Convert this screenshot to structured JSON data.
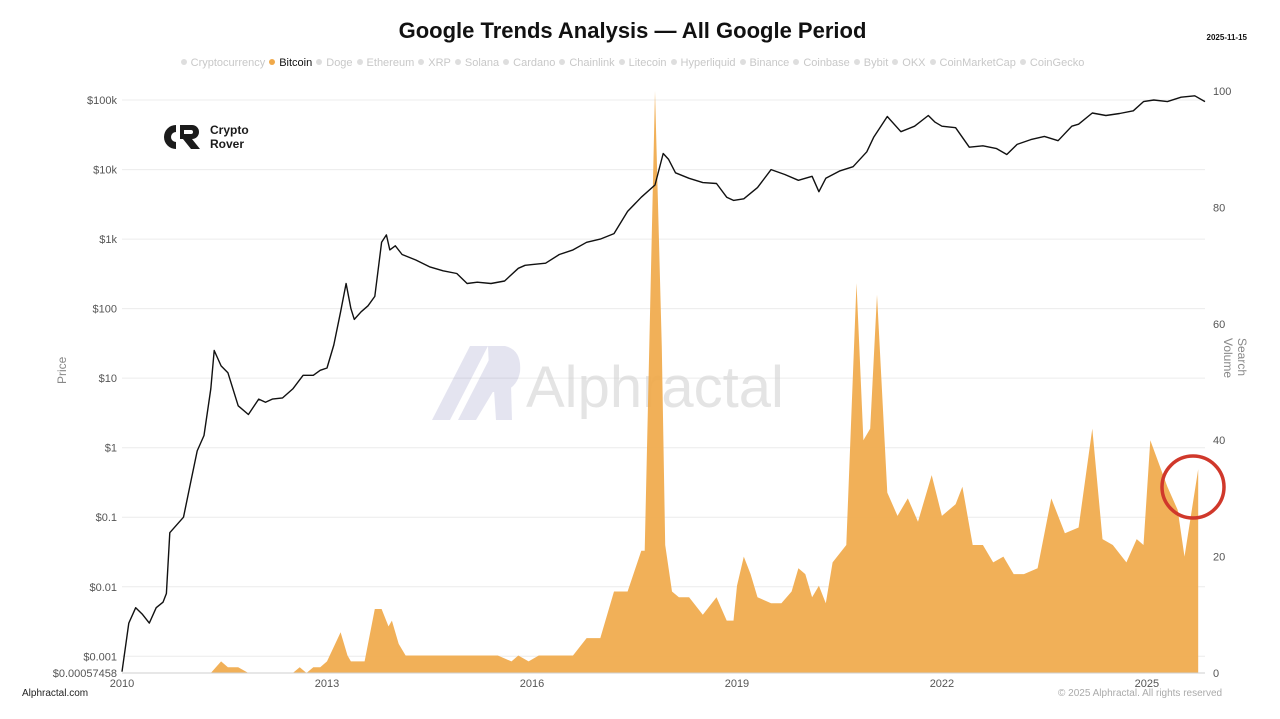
{
  "header": {
    "title": "Google Trends Analysis — All Google Period",
    "date": "2025-11-15"
  },
  "legend": {
    "items": [
      "Cryptocurrency",
      "Bitcoin",
      "Doge",
      "Ethereum",
      "XRP",
      "Solana",
      "Cardano",
      "Chainlink",
      "Litecoin",
      "Hyperliquid",
      "Binance",
      "Coinbase",
      "Bybit",
      "OKX",
      "CoinMarketCap",
      "CoinGecko"
    ],
    "active": "Bitcoin"
  },
  "brand": {
    "line1": "Crypto",
    "line2": "Rover"
  },
  "watermark": "Alphractal",
  "footer": {
    "left": "Alphractal.com",
    "right": "© 2025 Alphractal. All rights reserved"
  },
  "colors": {
    "bitcoin_area": "#f0a94a",
    "price_line": "#111111",
    "highlight_circle": "#d0382b",
    "gridline": "#ececec"
  },
  "chart_data": {
    "type": "line",
    "title": "Google Trends Analysis — All Google Period",
    "xlabel": "",
    "ylabel": "Price",
    "y2label": "Search Volume",
    "x_ticks": [
      "2010",
      "2013",
      "2016",
      "2019",
      "2022",
      "2025"
    ],
    "y_ticks_left": [
      "$0.00057458",
      "$0.001",
      "$0.01",
      "$0.1",
      "$1",
      "$10",
      "$100",
      "$1k",
      "$10k",
      "$100k"
    ],
    "y_ticks_right": [
      "0",
      "20",
      "40",
      "60",
      "80",
      "100"
    ],
    "xlim": [
      2010.0,
      2025.85
    ],
    "ylim_left_log10": [
      -3.24,
      5.13
    ],
    "ylim_right": [
      0,
      100
    ],
    "y_scale_left": "log",
    "grid": true,
    "legend_position": "top",
    "annotation": "circle around late-2025 search volume peak",
    "series": [
      {
        "name": "Bitcoin",
        "axis": "right",
        "type": "area",
        "x": [
          2010.0,
          2011.3,
          2011.45,
          2011.55,
          2011.7,
          2011.85,
          2012.0,
          2012.5,
          2012.6,
          2012.7,
          2012.8,
          2012.9,
          2013.0,
          2013.2,
          2013.3,
          2013.35,
          2013.45,
          2013.55,
          2013.7,
          2013.8,
          2013.9,
          2013.95,
          2014.05,
          2014.15,
          2014.25,
          2014.35,
          2014.5,
          2014.8,
          2015.0,
          2015.2,
          2015.5,
          2015.7,
          2015.8,
          2015.95,
          2016.1,
          2016.2,
          2016.3,
          2016.45,
          2016.6,
          2016.8,
          2017.0,
          2017.2,
          2017.4,
          2017.6,
          2017.65,
          2017.8,
          2017.9,
          2017.95,
          2018.0,
          2018.05,
          2018.15,
          2018.3,
          2018.5,
          2018.7,
          2018.85,
          2018.95,
          2019.0,
          2019.1,
          2019.2,
          2019.3,
          2019.5,
          2019.65,
          2019.8,
          2019.9,
          2020.0,
          2020.1,
          2020.2,
          2020.3,
          2020.4,
          2020.6,
          2020.75,
          2020.85,
          2020.95,
          2021.05,
          2021.2,
          2021.35,
          2021.5,
          2021.65,
          2021.85,
          2022.0,
          2022.2,
          2022.3,
          2022.45,
          2022.6,
          2022.75,
          2022.9,
          2023.05,
          2023.2,
          2023.4,
          2023.6,
          2023.8,
          2024.0,
          2024.2,
          2024.35,
          2024.5,
          2024.7,
          2024.85,
          2024.95,
          2025.05,
          2025.3,
          2025.45,
          2025.55,
          2025.75
        ],
        "values": [
          0,
          0,
          2,
          1,
          1,
          0,
          0,
          0,
          1,
          0,
          1,
          1,
          2,
          7,
          3,
          2,
          2,
          2,
          11,
          11,
          8,
          9,
          5,
          3,
          3,
          3,
          3,
          3,
          3,
          3,
          3,
          2,
          3,
          2,
          3,
          3,
          3,
          3,
          3,
          6,
          6,
          14,
          14,
          21,
          21,
          100,
          56,
          22,
          18,
          14,
          13,
          13,
          10,
          13,
          9,
          9,
          15,
          20,
          17,
          13,
          12,
          12,
          14,
          18,
          17,
          13,
          15,
          12,
          19,
          22,
          67,
          40,
          42,
          65,
          31,
          27,
          30,
          26,
          34,
          27,
          29,
          32,
          22,
          22,
          19,
          20,
          17,
          17,
          18,
          30,
          24,
          25,
          42,
          23,
          22,
          19,
          23,
          22,
          40,
          32,
          28,
          20,
          35
        ]
      },
      {
        "name": "Price",
        "axis": "left",
        "type": "line",
        "x": [
          2010.0,
          2010.1,
          2010.2,
          2010.3,
          2010.4,
          2010.5,
          2010.6,
          2010.65,
          2010.7,
          2010.9,
          2011.0,
          2011.1,
          2011.2,
          2011.3,
          2011.35,
          2011.45,
          2011.55,
          2011.7,
          2011.85,
          2012.0,
          2012.1,
          2012.2,
          2012.35,
          2012.5,
          2012.65,
          2012.8,
          2012.9,
          2013.0,
          2013.1,
          2013.2,
          2013.28,
          2013.35,
          2013.4,
          2013.5,
          2013.6,
          2013.7,
          2013.8,
          2013.87,
          2013.92,
          2014.0,
          2014.1,
          2014.3,
          2014.5,
          2014.7,
          2014.9,
          2015.05,
          2015.2,
          2015.4,
          2015.6,
          2015.8,
          2015.9,
          2016.0,
          2016.2,
          2016.4,
          2016.6,
          2016.8,
          2017.0,
          2017.2,
          2017.4,
          2017.6,
          2017.8,
          2017.92,
          2018.0,
          2018.1,
          2018.3,
          2018.5,
          2018.7,
          2018.85,
          2018.95,
          2019.1,
          2019.3,
          2019.5,
          2019.7,
          2019.9,
          2020.1,
          2020.2,
          2020.3,
          2020.5,
          2020.7,
          2020.9,
          2021.0,
          2021.2,
          2021.4,
          2021.6,
          2021.8,
          2021.9,
          2022.0,
          2022.2,
          2022.4,
          2022.6,
          2022.8,
          2022.95,
          2023.1,
          2023.3,
          2023.5,
          2023.7,
          2023.9,
          2024.0,
          2024.2,
          2024.4,
          2024.6,
          2024.8,
          2024.95,
          2025.1,
          2025.3,
          2025.5,
          2025.7,
          2025.85
        ],
        "values": [
          0.0006,
          0.003,
          0.005,
          0.004,
          0.003,
          0.005,
          0.006,
          0.008,
          0.06,
          0.1,
          0.3,
          0.9,
          1.5,
          7,
          25,
          15,
          12,
          4,
          3,
          5,
          4.5,
          5,
          5.2,
          7,
          11,
          11,
          13,
          14,
          30,
          90,
          230,
          100,
          70,
          90,
          110,
          150,
          900,
          1150,
          700,
          800,
          600,
          500,
          400,
          350,
          320,
          230,
          240,
          230,
          250,
          380,
          420,
          430,
          450,
          600,
          700,
          900,
          1000,
          1200,
          2500,
          4000,
          6000,
          17000,
          14000,
          9000,
          7500,
          6500,
          6300,
          4000,
          3600,
          3800,
          5500,
          10000,
          8500,
          7000,
          8000,
          4800,
          7500,
          9500,
          11000,
          18000,
          29000,
          58000,
          35000,
          42000,
          60000,
          48000,
          42000,
          40000,
          21000,
          22000,
          20000,
          16500,
          23000,
          27000,
          30000,
          26000,
          42000,
          45000,
          65000,
          60000,
          64000,
          70000,
          95000,
          100000,
          95000,
          110000,
          115000,
          95000
        ]
      }
    ]
  }
}
